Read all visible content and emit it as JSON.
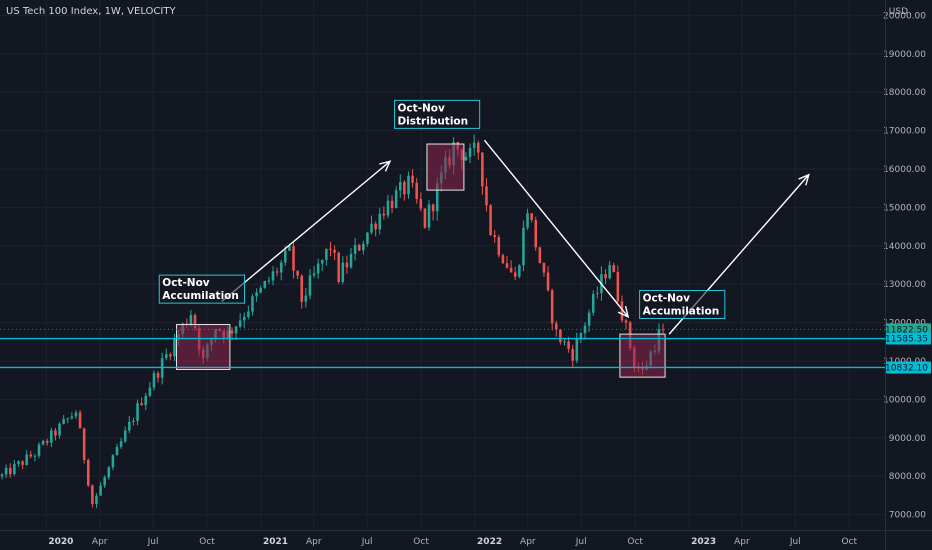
{
  "chart_data": {
    "type": "candlestick",
    "title": "US Tech 100 Index, 1W, VELOCITY",
    "currency": "USD",
    "ylim": [
      6600,
      20400
    ],
    "y_ticks": [
      7000,
      8000,
      9000,
      10000,
      11000,
      12000,
      13000,
      14000,
      15000,
      16000,
      17000,
      18000,
      19000,
      20000
    ],
    "y_tick_labels": [
      "7000.00",
      "8000.00",
      "9000.00",
      "10000.00",
      "11000.00",
      "12000.00",
      "13000.00",
      "14000.00",
      "15000.00",
      "16000.00",
      "17000.00",
      "18000.00",
      "19000.00",
      "20000.00"
    ],
    "x_range": [
      "2019-10-14",
      "2023-12-01"
    ],
    "x_ticks": [
      {
        "date": "2020-01-01",
        "label": "2020",
        "major": true
      },
      {
        "date": "2020-04-01",
        "label": "Apr",
        "major": false
      },
      {
        "date": "2020-07-01",
        "label": "Jul",
        "major": false
      },
      {
        "date": "2020-10-01",
        "label": "Oct",
        "major": false
      },
      {
        "date": "2021-01-01",
        "label": "2021",
        "major": true
      },
      {
        "date": "2021-04-01",
        "label": "Apr",
        "major": false
      },
      {
        "date": "2021-07-01",
        "label": "Jul",
        "major": false
      },
      {
        "date": "2021-10-01",
        "label": "Oct",
        "major": false
      },
      {
        "date": "2022-01-01",
        "label": "2022",
        "major": true
      },
      {
        "date": "2022-04-01",
        "label": "Apr",
        "major": false
      },
      {
        "date": "2022-07-01",
        "label": "Jul",
        "major": false
      },
      {
        "date": "2022-10-01",
        "label": "Oct",
        "major": false
      },
      {
        "date": "2023-01-01",
        "label": "2023",
        "major": true
      },
      {
        "date": "2023-04-01",
        "label": "Apr",
        "major": false
      },
      {
        "date": "2023-07-01",
        "label": "Jul",
        "major": false
      },
      {
        "date": "2023-10-01",
        "label": "Oct",
        "major": false
      }
    ],
    "candle_start": "2019-10-14",
    "candle_close_path": [
      {
        "date": "2019-10-14",
        "close": 8000
      },
      {
        "date": "2019-12-09",
        "close": 8600
      },
      {
        "date": "2020-02-17",
        "close": 9700
      },
      {
        "date": "2020-03-16",
        "close": 7300
      },
      {
        "date": "2020-03-23",
        "close": 7500
      },
      {
        "date": "2020-06-08",
        "close": 10000
      },
      {
        "date": "2020-09-01",
        "close": 12300
      },
      {
        "date": "2020-09-21",
        "close": 11000
      },
      {
        "date": "2020-10-12",
        "close": 11900
      },
      {
        "date": "2020-11-02",
        "close": 11700
      },
      {
        "date": "2021-02-15",
        "close": 13800
      },
      {
        "date": "2021-03-08",
        "close": 12600
      },
      {
        "date": "2021-04-26",
        "close": 14000
      },
      {
        "date": "2021-05-10",
        "close": 13200
      },
      {
        "date": "2021-07-26",
        "close": 15000
      },
      {
        "date": "2021-09-07",
        "close": 15600
      },
      {
        "date": "2021-10-04",
        "close": 14600
      },
      {
        "date": "2021-11-22",
        "close": 16600
      },
      {
        "date": "2021-12-20",
        "close": 16300
      },
      {
        "date": "2022-01-03",
        "close": 16500
      },
      {
        "date": "2022-01-24",
        "close": 14400
      },
      {
        "date": "2022-03-07",
        "close": 13100
      },
      {
        "date": "2022-03-28",
        "close": 15000
      },
      {
        "date": "2022-05-16",
        "close": 11700
      },
      {
        "date": "2022-06-13",
        "close": 11200
      },
      {
        "date": "2022-08-15",
        "close": 13600
      },
      {
        "date": "2022-09-26",
        "close": 10950
      },
      {
        "date": "2022-10-10",
        "close": 10700
      },
      {
        "date": "2022-11-07",
        "close": 11700
      },
      {
        "date": "2022-11-14",
        "close": 11822.5
      }
    ],
    "horizontal_lines": [
      11585.35,
      10832.1
    ],
    "price_labels": [
      {
        "value": 11822.5,
        "text": "11822.50",
        "color": "#22ab94"
      },
      {
        "value": 11585.35,
        "text": "11585.35",
        "color": "#00bcd4"
      },
      {
        "value": 10832.1,
        "text": "10832.10",
        "color": "#00bcd4"
      }
    ],
    "annotations": [
      {
        "text": [
          "Oct-Nov",
          "Accumilation"
        ],
        "date": "2020-07-15",
        "value": 12950
      },
      {
        "text": [
          "Oct-Nov",
          "Distribution"
        ],
        "date": "2021-08-20",
        "value": 17500
      },
      {
        "text": [
          "Oct-Nov",
          "Accumilation"
        ],
        "date": "2022-10-12",
        "value": 12550
      }
    ],
    "boxes": [
      {
        "from": "2020-08-10",
        "to": "2020-11-09",
        "low": 10780,
        "high": 11950
      },
      {
        "from": "2021-10-11",
        "to": "2021-12-13",
        "low": 15450,
        "high": 16650
      },
      {
        "from": "2022-09-05",
        "to": "2022-11-21",
        "low": 10580,
        "high": 11700
      }
    ],
    "arrows": [
      {
        "from": {
          "date": "2020-10-26",
          "value": 12550
        },
        "to": {
          "date": "2021-08-09",
          "value": 16200
        }
      },
      {
        "from": {
          "date": "2022-01-17",
          "value": 16750
        },
        "to": {
          "date": "2022-09-19",
          "value": 12150
        }
      },
      {
        "from": {
          "date": "2022-11-28",
          "value": 11700
        },
        "to": {
          "date": "2023-07-24",
          "value": 15850
        }
      }
    ],
    "colors": {
      "background": "#131722",
      "grid": "#1f2330",
      "up": "#26a69a",
      "down": "#ef5350",
      "hline": "#00bcd4",
      "box_fill": "#8e244d",
      "box_stroke": "#e6e6e6",
      "arrow": "#ffffff",
      "annot_border": "#26c6da"
    }
  }
}
